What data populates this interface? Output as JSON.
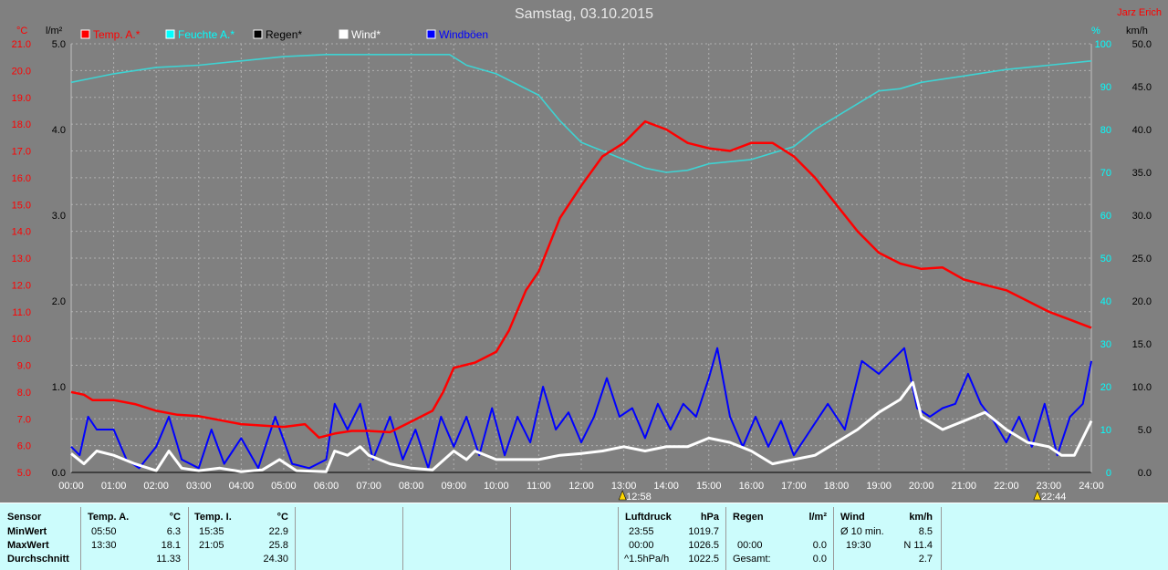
{
  "title": "Samstag, 03.10.2015",
  "author": "Jarz Erich",
  "legend": [
    {
      "label": "Temp. A.*",
      "color": "#ff0000"
    },
    {
      "label": "Feuchte A.*",
      "color": "#00ffff"
    },
    {
      "label": "Regen*",
      "color": "#000000"
    },
    {
      "label": "Wind*",
      "color": "#ffffff"
    },
    {
      "label": "Windböen",
      "color": "#0000ff"
    }
  ],
  "colors": {
    "background": "#808080",
    "grid": "#b0b0b0",
    "temp": "#ff0000",
    "humidity": "#3ed3d3",
    "wind": "#ffffff",
    "gusts": "#0000ff",
    "rain": "#000000",
    "panel": "#ccfcfc"
  },
  "markers": [
    {
      "time": "12:58",
      "x": 12.97
    },
    {
      "time": "22:44",
      "x": 22.73
    }
  ],
  "chart_data": {
    "type": "line",
    "x_range": [
      0,
      24
    ],
    "x_ticks": [
      "00:00",
      "01:00",
      "02:00",
      "03:00",
      "04:00",
      "05:00",
      "06:00",
      "07:00",
      "08:00",
      "09:00",
      "10:00",
      "11:00",
      "12:00",
      "13:00",
      "14:00",
      "15:00",
      "16:00",
      "17:00",
      "18:00",
      "19:00",
      "20:00",
      "21:00",
      "22:00",
      "23:00",
      "24:00"
    ],
    "axes": {
      "temp": {
        "unit": "°C",
        "range": [
          5.0,
          21.0
        ],
        "ticks": [
          "5.0",
          "6.0",
          "7.0",
          "8.0",
          "9.0",
          "10.0",
          "11.0",
          "12.0",
          "13.0",
          "14.0",
          "15.0",
          "16.0",
          "17.0",
          "18.0",
          "19.0",
          "20.0",
          "21.0"
        ]
      },
      "rain": {
        "unit": "l/m²",
        "range": [
          0.0,
          5.0
        ],
        "ticks": [
          "0.0",
          "1.0",
          "2.0",
          "3.0",
          "4.0",
          "5.0"
        ]
      },
      "humidity": {
        "unit": "%",
        "range": [
          0,
          100
        ],
        "ticks": [
          "0",
          "10",
          "20",
          "30",
          "40",
          "50",
          "60",
          "70",
          "80",
          "90",
          "100"
        ]
      },
      "wind": {
        "unit": "km/h",
        "range": [
          0.0,
          50.0
        ],
        "ticks": [
          "0.0",
          "5.0",
          "10.0",
          "15.0",
          "20.0",
          "25.0",
          "30.0",
          "35.0",
          "40.0",
          "45.0",
          "50.0"
        ]
      }
    },
    "series": [
      {
        "name": "Temp. A.*",
        "axis": "temp",
        "points": [
          [
            0,
            8.0
          ],
          [
            0.3,
            7.9
          ],
          [
            0.5,
            7.7
          ],
          [
            1,
            7.7
          ],
          [
            1.5,
            7.55
          ],
          [
            2,
            7.3
          ],
          [
            2.5,
            7.15
          ],
          [
            3,
            7.1
          ],
          [
            3.5,
            6.95
          ],
          [
            4,
            6.8
          ],
          [
            4.5,
            6.75
          ],
          [
            5,
            6.7
          ],
          [
            5.5,
            6.8
          ],
          [
            5.83,
            6.3
          ],
          [
            6.2,
            6.45
          ],
          [
            6.6,
            6.55
          ],
          [
            7,
            6.55
          ],
          [
            7.5,
            6.5
          ],
          [
            8,
            6.9
          ],
          [
            8.5,
            7.3
          ],
          [
            8.75,
            8.0
          ],
          [
            9,
            8.9
          ],
          [
            9.5,
            9.1
          ],
          [
            10,
            9.5
          ],
          [
            10.3,
            10.3
          ],
          [
            10.7,
            11.8
          ],
          [
            11,
            12.5
          ],
          [
            11.5,
            14.5
          ],
          [
            12,
            15.7
          ],
          [
            12.5,
            16.8
          ],
          [
            13,
            17.3
          ],
          [
            13.5,
            18.1
          ],
          [
            14,
            17.8
          ],
          [
            14.5,
            17.3
          ],
          [
            15,
            17.1
          ],
          [
            15.5,
            17.0
          ],
          [
            16,
            17.3
          ],
          [
            16.5,
            17.3
          ],
          [
            17,
            16.8
          ],
          [
            17.5,
            16.0
          ],
          [
            18,
            15.0
          ],
          [
            18.5,
            14.0
          ],
          [
            19,
            13.2
          ],
          [
            19.5,
            12.8
          ],
          [
            20,
            12.6
          ],
          [
            20.5,
            12.65
          ],
          [
            21,
            12.2
          ],
          [
            21.5,
            12.0
          ],
          [
            22,
            11.8
          ],
          [
            22.5,
            11.4
          ],
          [
            23,
            11.0
          ],
          [
            23.5,
            10.7
          ],
          [
            24,
            10.4
          ]
        ]
      },
      {
        "name": "Feuchte A.*",
        "axis": "humidity",
        "points": [
          [
            0,
            91
          ],
          [
            0.5,
            92
          ],
          [
            1,
            93
          ],
          [
            2,
            94.5
          ],
          [
            3,
            95
          ],
          [
            4,
            96
          ],
          [
            5,
            97
          ],
          [
            6,
            97.5
          ],
          [
            7,
            97.5
          ],
          [
            8,
            97.5
          ],
          [
            8.9,
            97.5
          ],
          [
            9.3,
            95
          ],
          [
            10,
            93
          ],
          [
            11,
            88
          ],
          [
            11.5,
            82
          ],
          [
            12,
            77
          ],
          [
            12.5,
            75
          ],
          [
            13,
            73
          ],
          [
            13.5,
            71
          ],
          [
            14,
            70
          ],
          [
            14.5,
            70.5
          ],
          [
            15,
            72
          ],
          [
            16,
            73
          ],
          [
            17,
            76
          ],
          [
            17.5,
            80
          ],
          [
            18,
            83
          ],
          [
            18.5,
            86
          ],
          [
            19,
            89
          ],
          [
            19.5,
            89.5
          ],
          [
            20,
            91
          ],
          [
            21,
            92.5
          ],
          [
            22,
            94
          ],
          [
            23,
            95
          ],
          [
            24,
            96
          ]
        ]
      },
      {
        "name": "Wind*",
        "axis": "wind",
        "points": [
          [
            0,
            2.2
          ],
          [
            0.3,
            1.0
          ],
          [
            0.6,
            2.5
          ],
          [
            1,
            2.0
          ],
          [
            1.5,
            1.0
          ],
          [
            2,
            0.2
          ],
          [
            2.3,
            2.5
          ],
          [
            2.6,
            0.5
          ],
          [
            3,
            0.2
          ],
          [
            3.5,
            0.5
          ],
          [
            4,
            0.1
          ],
          [
            4.5,
            0.3
          ],
          [
            4.9,
            1.5
          ],
          [
            5.3,
            0.2
          ],
          [
            6,
            0.1
          ],
          [
            6.2,
            2.5
          ],
          [
            6.5,
            2.0
          ],
          [
            6.8,
            3.0
          ],
          [
            7,
            2.0
          ],
          [
            7.5,
            1.0
          ],
          [
            8,
            0.5
          ],
          [
            8.5,
            0.3
          ],
          [
            9,
            2.5
          ],
          [
            9.3,
            1.5
          ],
          [
            9.5,
            2.5
          ],
          [
            10,
            1.5
          ],
          [
            10.5,
            1.5
          ],
          [
            11,
            1.5
          ],
          [
            11.5,
            2.0
          ],
          [
            12,
            2.2
          ],
          [
            12.5,
            2.5
          ],
          [
            13,
            3.0
          ],
          [
            13.5,
            2.5
          ],
          [
            14,
            3.0
          ],
          [
            14.5,
            3.0
          ],
          [
            15,
            4.0
          ],
          [
            15.5,
            3.5
          ],
          [
            16,
            2.5
          ],
          [
            16.5,
            1.0
          ],
          [
            17,
            1.5
          ],
          [
            17.5,
            2.0
          ],
          [
            18,
            3.5
          ],
          [
            18.5,
            5.0
          ],
          [
            19,
            7.0
          ],
          [
            19.5,
            8.5
          ],
          [
            19.8,
            10.5
          ],
          [
            20,
            6.5
          ],
          [
            20.5,
            5.0
          ],
          [
            21,
            6.0
          ],
          [
            21.5,
            7.0
          ],
          [
            22,
            5.0
          ],
          [
            22.5,
            3.5
          ],
          [
            23,
            3.0
          ],
          [
            23.3,
            2.0
          ],
          [
            23.6,
            2.0
          ],
          [
            24,
            6.0
          ]
        ]
      },
      {
        "name": "Windböen",
        "axis": "wind",
        "points": [
          [
            0,
            3.0
          ],
          [
            0.2,
            2.0
          ],
          [
            0.4,
            6.5
          ],
          [
            0.6,
            5.0
          ],
          [
            1,
            5.0
          ],
          [
            1.3,
            1.5
          ],
          [
            1.6,
            0.5
          ],
          [
            2,
            3.0
          ],
          [
            2.3,
            6.5
          ],
          [
            2.6,
            1.5
          ],
          [
            3,
            0.5
          ],
          [
            3.3,
            5.0
          ],
          [
            3.6,
            1.0
          ],
          [
            4,
            4.0
          ],
          [
            4.4,
            0.5
          ],
          [
            4.8,
            6.5
          ],
          [
            5.2,
            1.0
          ],
          [
            5.6,
            0.5
          ],
          [
            6,
            1.5
          ],
          [
            6.2,
            8.0
          ],
          [
            6.5,
            5.0
          ],
          [
            6.8,
            8.0
          ],
          [
            7.1,
            1.5
          ],
          [
            7.5,
            6.5
          ],
          [
            7.8,
            1.5
          ],
          [
            8.1,
            5.0
          ],
          [
            8.4,
            0.5
          ],
          [
            8.7,
            6.5
          ],
          [
            9.0,
            3.0
          ],
          [
            9.3,
            6.5
          ],
          [
            9.6,
            2.0
          ],
          [
            9.9,
            7.5
          ],
          [
            10.2,
            2.0
          ],
          [
            10.5,
            6.5
          ],
          [
            10.8,
            3.5
          ],
          [
            11.1,
            10.0
          ],
          [
            11.4,
            5.0
          ],
          [
            11.7,
            7.0
          ],
          [
            12,
            3.5
          ],
          [
            12.3,
            6.5
          ],
          [
            12.6,
            11.0
          ],
          [
            12.9,
            6.5
          ],
          [
            13.2,
            7.5
          ],
          [
            13.5,
            4.0
          ],
          [
            13.8,
            8.0
          ],
          [
            14.1,
            5.0
          ],
          [
            14.4,
            8.0
          ],
          [
            14.7,
            6.5
          ],
          [
            15,
            11.0
          ],
          [
            15.2,
            14.5
          ],
          [
            15.5,
            6.5
          ],
          [
            15.8,
            3.0
          ],
          [
            16.1,
            6.5
          ],
          [
            16.4,
            3.0
          ],
          [
            16.7,
            6.0
          ],
          [
            17,
            2.0
          ],
          [
            17.4,
            5.0
          ],
          [
            17.8,
            8.0
          ],
          [
            18.2,
            5.0
          ],
          [
            18.6,
            13.0
          ],
          [
            19,
            11.5
          ],
          [
            19.3,
            13.0
          ],
          [
            19.6,
            14.5
          ],
          [
            19.9,
            7.5
          ],
          [
            20.2,
            6.5
          ],
          [
            20.5,
            7.5
          ],
          [
            20.8,
            8.0
          ],
          [
            21.1,
            11.5
          ],
          [
            21.4,
            8.0
          ],
          [
            21.7,
            6.0
          ],
          [
            22,
            3.5
          ],
          [
            22.3,
            6.5
          ],
          [
            22.6,
            3.0
          ],
          [
            22.9,
            8.0
          ],
          [
            23.2,
            2.0
          ],
          [
            23.5,
            6.5
          ],
          [
            23.8,
            8.0
          ],
          [
            24,
            13.0
          ]
        ]
      }
    ]
  },
  "stats": {
    "temp_a": {
      "sensor": "Sensor",
      "header": "Temp. A.",
      "unit": "°C",
      "rows": [
        {
          "label": "MinWert",
          "time": "05:50",
          "value": "6.3"
        },
        {
          "label": "MaxWert",
          "time": "13:30",
          "value": "18.1"
        },
        {
          "label": "Durchschnitt",
          "time": "",
          "value": "11.33"
        }
      ]
    },
    "temp_i": {
      "header": "Temp. I.",
      "unit": "°C",
      "rows": [
        {
          "time": "15:35",
          "value": "22.9"
        },
        {
          "time": "21:05",
          "value": "25.8"
        },
        {
          "time": "",
          "value": "24.30"
        }
      ]
    },
    "pressure": {
      "header": "Luftdruck",
      "unit": "hPa",
      "rows": [
        {
          "time": "23:55",
          "value": "1019.7"
        },
        {
          "time": "00:00",
          "value": "1026.5"
        },
        {
          "time": "^1.5hPa/h",
          "value": "1022.5"
        }
      ]
    },
    "rain": {
      "header": "Regen",
      "unit": "l/m²",
      "rows": [
        {
          "time": "",
          "value": ""
        },
        {
          "time": "00:00",
          "value": "0.0"
        },
        {
          "time": "Gesamt:",
          "value": "0.0"
        }
      ]
    },
    "wind": {
      "header": "Wind",
      "unit": "km/h",
      "rows": [
        {
          "time": "Ø 10 min.",
          "value": "8.5"
        },
        {
          "time": "19:30",
          "value": "N 11.4"
        },
        {
          "time": "",
          "value": "2.7"
        }
      ]
    }
  }
}
